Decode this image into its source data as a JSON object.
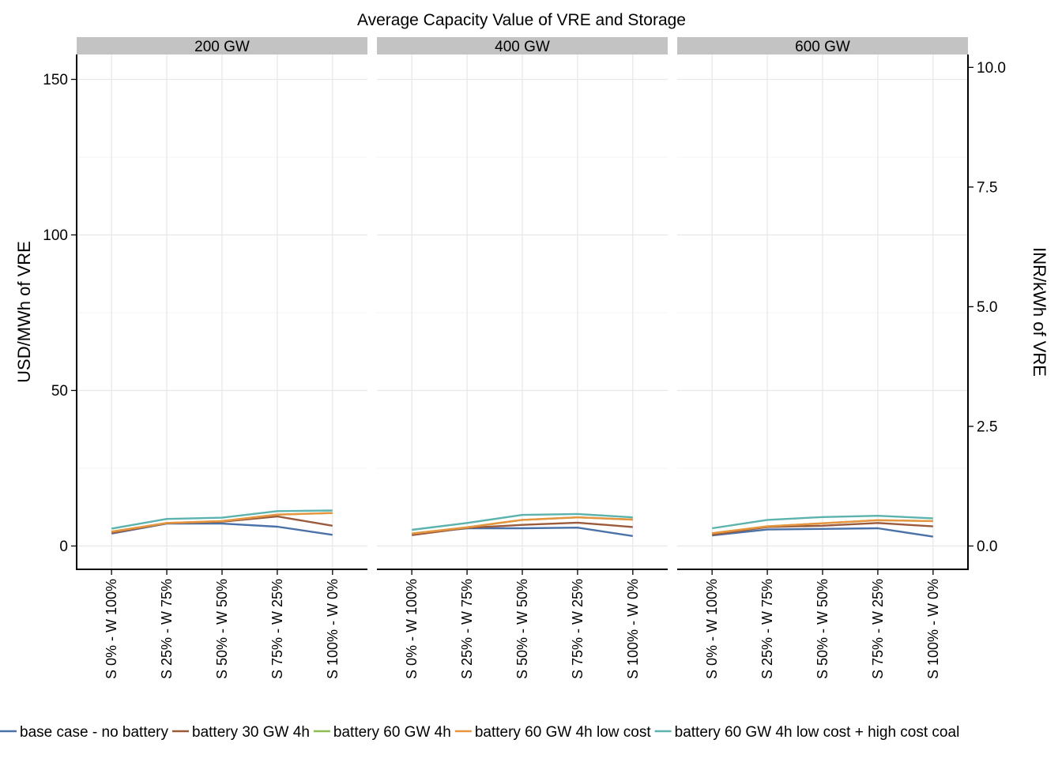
{
  "chart_data": {
    "type": "line",
    "title": "Average Capacity Value of VRE and Storage",
    "ylabel": "USD/MWh of VRE",
    "ylabel_right": "INR/kWh of VRE",
    "ylim": [
      -7.5,
      158
    ],
    "y_ticks": [
      0,
      50,
      100,
      150
    ],
    "y_ticks_right": [
      "0.0",
      "2.5",
      "5.0",
      "7.5",
      "10.0"
    ],
    "y_right_per_left": 0.065,
    "grid": true,
    "legend_position": "bottom",
    "categories": [
      "S 0% - W 100%",
      "S 25% - W 75%",
      "S 50% - W 50%",
      "S 75% - W 25%",
      "S 100% - W 0%"
    ],
    "colors": {
      "base case - no battery": "#4a72a9",
      "battery 30 GW 4h": "#9b5a3c",
      "battery 60 GW 4h": "#8cbd4f",
      "battery 60 GW 4h low cost": "#e8943f",
      "battery 60 GW 4h low cost + high cost coal": "#5cb3ad"
    },
    "legend": [
      "base case - no battery",
      "battery 30 GW 4h",
      "battery 60 GW 4h",
      "battery 60 GW 4h low cost",
      "battery 60 GW 4h low cost + high cost coal"
    ],
    "panels": [
      {
        "label": "200 GW",
        "series": [
          {
            "name": "base case - no battery",
            "values": [
              4.0,
              7.2,
              7.2,
              6.2,
              3.6
            ]
          },
          {
            "name": "battery 30 GW 4h",
            "values": [
              4.2,
              7.3,
              7.8,
              9.5,
              6.5
            ]
          },
          {
            "name": "battery 60 GW 4h",
            "values": [
              4.6,
              7.4,
              8.0,
              10.1,
              10.6
            ]
          },
          {
            "name": "battery 60 GW 4h low cost",
            "values": [
              4.6,
              7.4,
              8.0,
              10.1,
              10.6
            ]
          },
          {
            "name": "battery 60 GW 4h low cost + high cost coal",
            "values": [
              5.6,
              8.7,
              9.1,
              11.2,
              11.4
            ]
          }
        ]
      },
      {
        "label": "400 GW",
        "series": [
          {
            "name": "base case - no battery",
            "values": [
              3.9,
              5.7,
              5.7,
              5.9,
              3.2
            ]
          },
          {
            "name": "battery 30 GW 4h",
            "values": [
              3.5,
              5.8,
              6.8,
              7.5,
              6.1
            ]
          },
          {
            "name": "battery 60 GW 4h",
            "values": [
              4.0,
              6.0,
              8.4,
              9.2,
              8.5
            ]
          },
          {
            "name": "battery 60 GW 4h low cost",
            "values": [
              4.0,
              6.0,
              8.4,
              9.2,
              8.5
            ]
          },
          {
            "name": "battery 60 GW 4h low cost + high cost coal",
            "values": [
              5.2,
              7.4,
              10.0,
              10.3,
              9.2
            ]
          }
        ]
      },
      {
        "label": "600 GW",
        "series": [
          {
            "name": "base case - no battery",
            "values": [
              3.4,
              5.3,
              5.5,
              5.7,
              3.0
            ]
          },
          {
            "name": "battery 30 GW 4h",
            "values": [
              3.6,
              6.1,
              6.5,
              7.4,
              6.3
            ]
          },
          {
            "name": "battery 60 GW 4h",
            "values": [
              4.1,
              6.3,
              7.3,
              8.3,
              8.0
            ]
          },
          {
            "name": "battery 60 GW 4h low cost",
            "values": [
              4.1,
              6.3,
              7.3,
              8.3,
              8.0
            ]
          },
          {
            "name": "battery 60 GW 4h low cost + high cost coal",
            "values": [
              5.7,
              8.4,
              9.3,
              9.7,
              8.9
            ]
          }
        ]
      }
    ]
  }
}
